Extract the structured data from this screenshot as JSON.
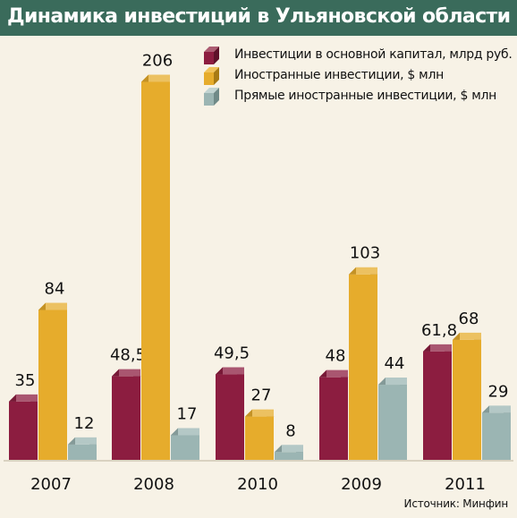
{
  "title": "Динамика инвестиций в Ульяновской области",
  "source": "Источник: Минфин",
  "colors": {
    "background": "#f7f2e6",
    "title_bar": "#3a6b5b",
    "series": [
      "#8c1d40",
      "#e6ac2c",
      "#9bb5b3"
    ]
  },
  "chart_data": {
    "type": "bar",
    "title": "Динамика инвестиций в Ульяновской области",
    "categories": [
      "2007",
      "2008",
      "2010",
      "2009",
      "2011"
    ],
    "series": [
      {
        "name": "Инвестиции в основной капитал, млрд руб.",
        "values": [
          35,
          48.5,
          49.5,
          48,
          61.8
        ],
        "labels": [
          "35",
          "48,5",
          "49,5",
          "48",
          "61,8"
        ]
      },
      {
        "name": "Иностранные инвестиции, $ млн",
        "values": [
          84,
          206,
          27,
          103,
          68
        ],
        "labels": [
          "84",
          "206",
          "27",
          "103",
          "68"
        ]
      },
      {
        "name": "Прямые иностранные инвестиции, $ млн",
        "values": [
          12,
          17,
          8,
          44,
          29
        ],
        "labels": [
          "12",
          "17",
          "8",
          "44",
          "29"
        ]
      }
    ],
    "legend_position": "top-right",
    "grid": false,
    "three_d": true
  }
}
